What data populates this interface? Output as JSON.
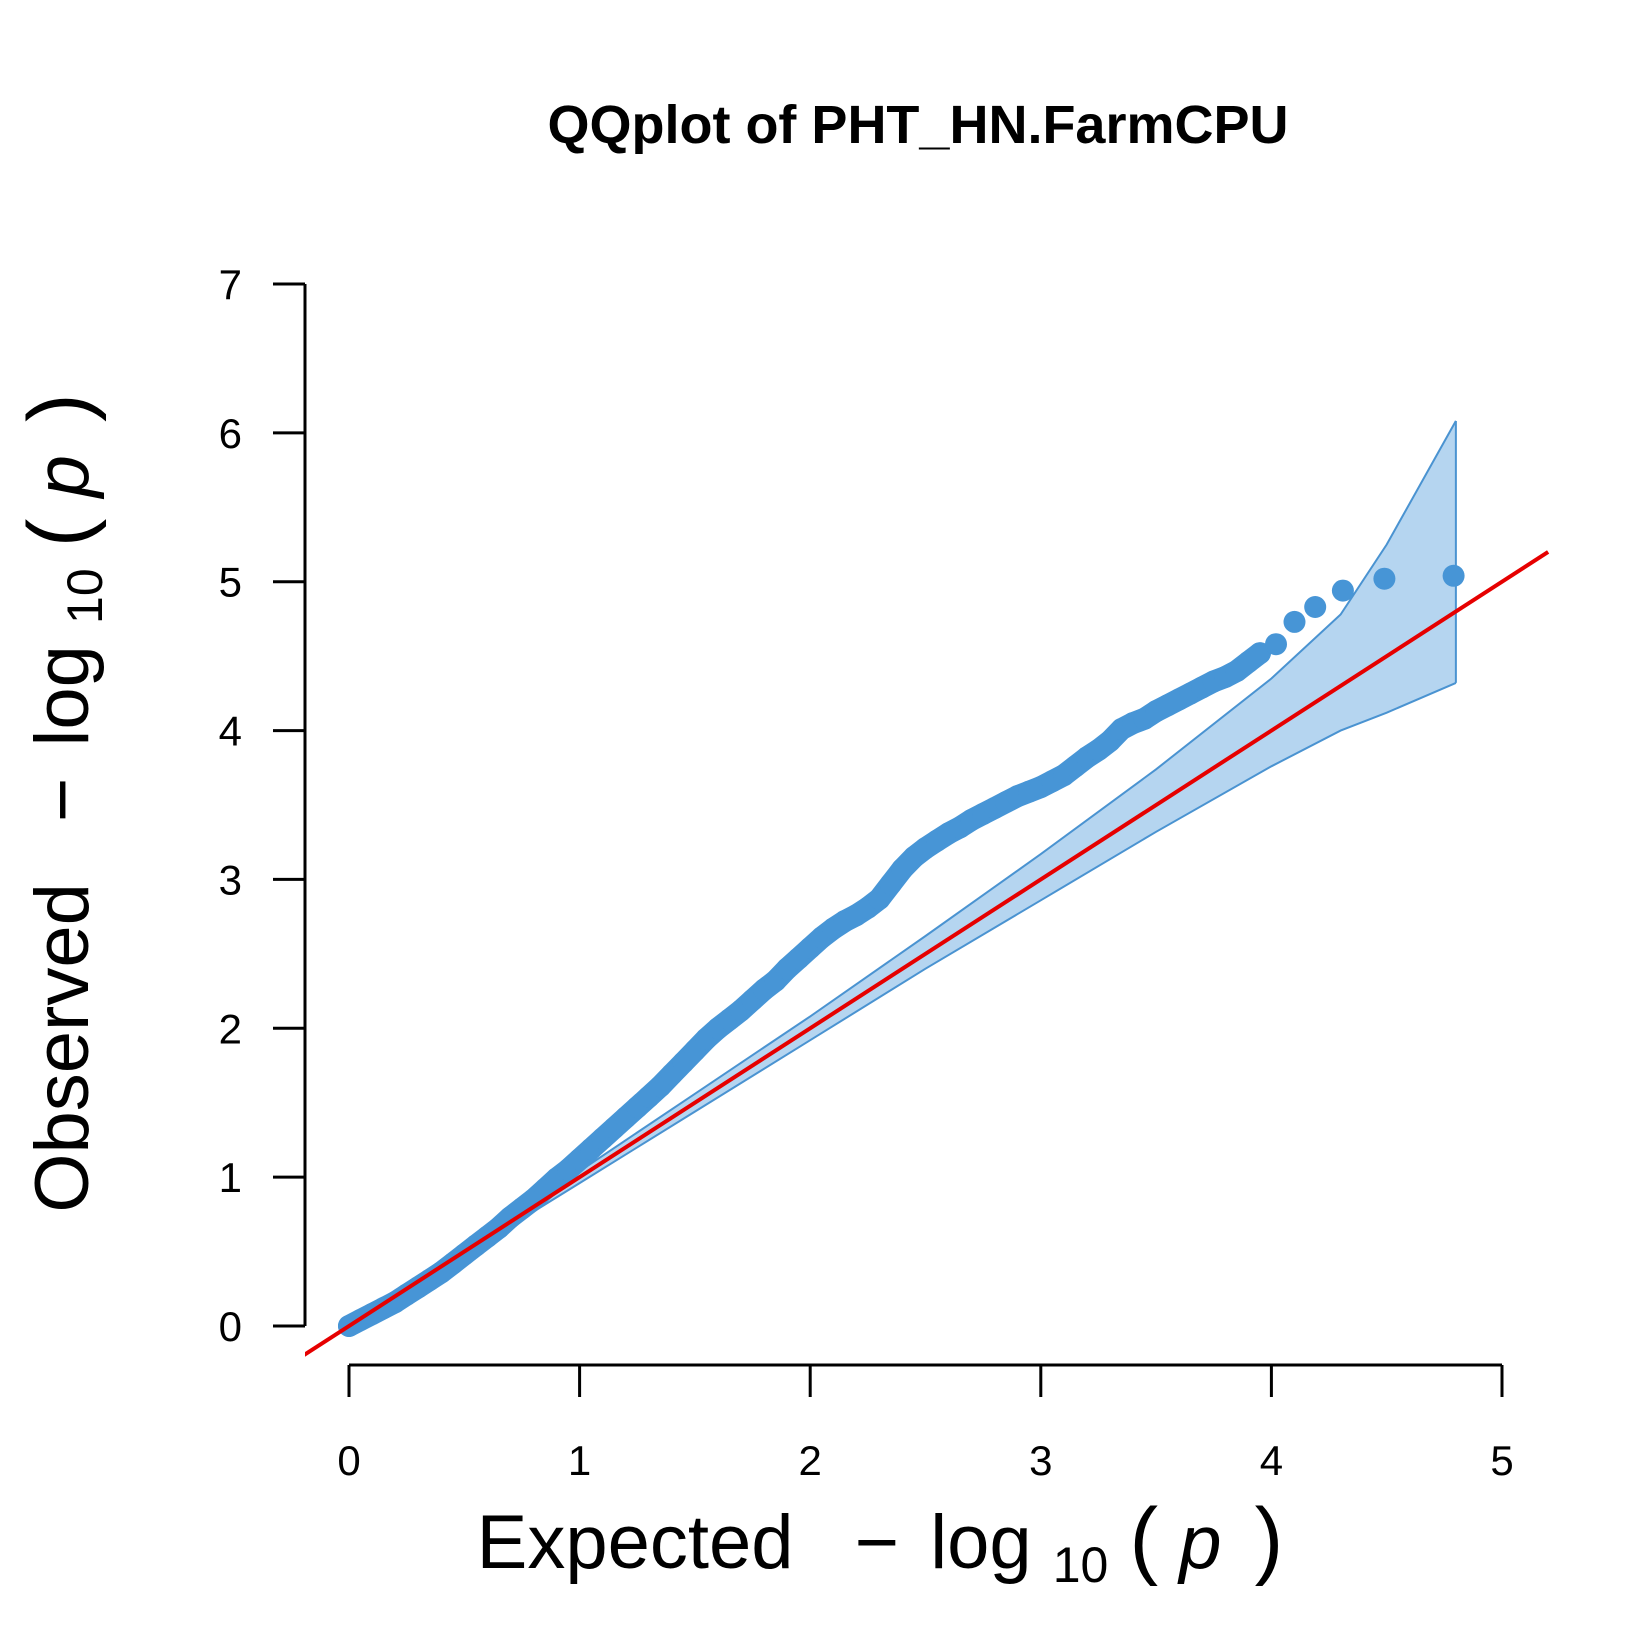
{
  "chart_data": {
    "type": "scatter",
    "title": "QQplot of PHT_HN.FarmCPU",
    "xlabel": {
      "prefix": "Expected",
      "minus": "−",
      "func": "log",
      "sub": "10",
      "open": "(",
      "var": "p",
      "close": ")"
    },
    "ylabel": {
      "prefix": "Observed",
      "minus": "−",
      "func": "log",
      "sub": "10",
      "open": "(",
      "var": "p",
      "close": ")"
    },
    "xlim": [
      0,
      5
    ],
    "ylim": [
      0,
      7
    ],
    "x_ticks": [
      "0",
      "1",
      "2",
      "3",
      "4",
      "5"
    ],
    "y_ticks": [
      "0",
      "1",
      "2",
      "3",
      "4",
      "5",
      "6",
      "7"
    ],
    "grid": false,
    "colors": {
      "points": "#4795D6",
      "reference_line": "#E60000",
      "band_fill": "#B5D5F0",
      "band_edge": "#4A93D1"
    },
    "reference_line": {
      "slope": 1,
      "intercept": 0
    },
    "confidence_band": {
      "x": [
        0.5,
        1,
        1.5,
        2,
        2.5,
        3,
        3.5,
        4,
        4.3,
        4.5,
        4.8
      ],
      "upper": [
        0.52,
        1.04,
        1.56,
        2.08,
        2.62,
        3.17,
        3.74,
        4.35,
        4.78,
        5.25,
        6.08
      ],
      "lower": [
        0.48,
        0.96,
        1.44,
        1.92,
        2.4,
        2.86,
        3.32,
        3.76,
        4.0,
        4.12,
        4.32
      ]
    },
    "series": [
      {
        "x": [
          0,
          0.05,
          0.1,
          0.15,
          0.2,
          0.25,
          0.3,
          0.35,
          0.4,
          0.45,
          0.5,
          0.55,
          0.6,
          0.65,
          0.7,
          0.75,
          0.8,
          0.85,
          0.9,
          0.95,
          1.0,
          1.05,
          1.1,
          1.15,
          1.2,
          1.25,
          1.3,
          1.35,
          1.4,
          1.45,
          1.5,
          1.55,
          1.6,
          1.65,
          1.7,
          1.75,
          1.8,
          1.85,
          1.9,
          1.95,
          2.0,
          2.05,
          2.1,
          2.15,
          2.2,
          2.25,
          2.3,
          2.35,
          2.4,
          2.45,
          2.5,
          2.55,
          2.6,
          2.65,
          2.7,
          2.75,
          2.8,
          2.85,
          2.9,
          2.95,
          3.0,
          3.05,
          3.1,
          3.15,
          3.2,
          3.25,
          3.3,
          3.35,
          3.4,
          3.45,
          3.5,
          3.55,
          3.6,
          3.65,
          3.7,
          3.75,
          3.8,
          3.85,
          3.9,
          3.95,
          4.02,
          4.1,
          4.19,
          4.31,
          4.49,
          4.79
        ],
        "y": [
          0.0,
          0.04,
          0.08,
          0.12,
          0.16,
          0.21,
          0.26,
          0.31,
          0.36,
          0.42,
          0.48,
          0.54,
          0.6,
          0.66,
          0.73,
          0.79,
          0.85,
          0.92,
          0.99,
          1.05,
          1.12,
          1.19,
          1.26,
          1.33,
          1.4,
          1.47,
          1.54,
          1.61,
          1.69,
          1.77,
          1.85,
          1.93,
          2.0,
          2.06,
          2.12,
          2.19,
          2.26,
          2.32,
          2.4,
          2.47,
          2.54,
          2.61,
          2.67,
          2.72,
          2.76,
          2.81,
          2.87,
          2.97,
          3.07,
          3.15,
          3.21,
          3.26,
          3.31,
          3.35,
          3.4,
          3.44,
          3.48,
          3.52,
          3.56,
          3.59,
          3.62,
          3.66,
          3.7,
          3.76,
          3.82,
          3.87,
          3.93,
          4.01,
          4.05,
          4.08,
          4.13,
          4.17,
          4.21,
          4.25,
          4.29,
          4.33,
          4.36,
          4.4,
          4.46,
          4.52,
          4.58,
          4.73,
          4.83,
          4.94,
          5.02,
          5.04
        ]
      }
    ]
  }
}
